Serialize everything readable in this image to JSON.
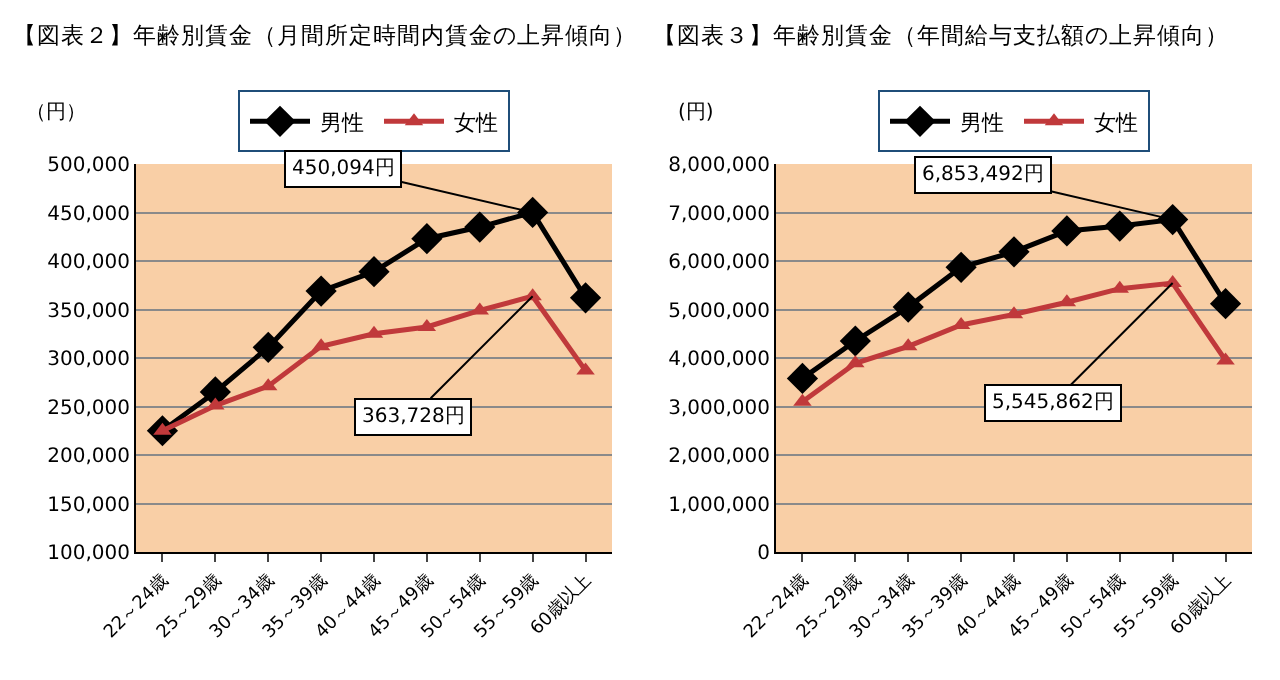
{
  "chart_data": [
    {
      "type": "line",
      "title": "【図表２】年齢別賃金（月間所定時間内賃金の上昇傾向）",
      "ylabel": "（円）",
      "categories": [
        "22～24歳",
        "25～29歳",
        "30～34歳",
        "35～39歳",
        "40～44歳",
        "45～49歳",
        "50～54歳",
        "55～59歳",
        "60歳以上"
      ],
      "series": [
        {
          "name": "男性",
          "color": "#000000",
          "marker": "diamond",
          "values": [
            225000,
            265000,
            311000,
            369000,
            389000,
            423000,
            435000,
            450094,
            362000
          ]
        },
        {
          "name": "女性",
          "color": "#c0393b",
          "marker": "triangle",
          "values": [
            225000,
            251000,
            271000,
            312000,
            325000,
            332000,
            349000,
            363728,
            287000
          ]
        }
      ],
      "ylim": [
        100000,
        500000
      ],
      "yticks": [
        {
          "value": 100000,
          "label": "100,000"
        },
        {
          "value": 150000,
          "label": "150,000"
        },
        {
          "value": 200000,
          "label": "200,000"
        },
        {
          "value": 250000,
          "label": "250,000"
        },
        {
          "value": 300000,
          "label": "300,000"
        },
        {
          "value": 350000,
          "label": "350,000"
        },
        {
          "value": 400000,
          "label": "400,000"
        },
        {
          "value": 450000,
          "label": "450,000"
        },
        {
          "value": 500000,
          "label": "500,000"
        }
      ],
      "grid": "y",
      "legend": "top",
      "annotations": [
        {
          "text": "450,094円",
          "x": "55～59歳",
          "y": 450094
        },
        {
          "text": "363,728円",
          "x": "55～59歳",
          "y": 363728
        }
      ]
    },
    {
      "type": "line",
      "title": "【図表３】年齢別賃金（年間給与支払額の上昇傾向）",
      "ylabel": "(円)",
      "categories": [
        "22～24歳",
        "25～29歳",
        "30～34歳",
        "35～39歳",
        "40～44歳",
        "45～49歳",
        "50～54歳",
        "55～59歳",
        "60歳以上"
      ],
      "series": [
        {
          "name": "男性",
          "color": "#000000",
          "marker": "diamond",
          "values": [
            3580000,
            4350000,
            5050000,
            5870000,
            6190000,
            6620000,
            6720000,
            6853492,
            5120000
          ]
        },
        {
          "name": "女性",
          "color": "#c0393b",
          "marker": "triangle",
          "values": [
            3100000,
            3890000,
            4240000,
            4680000,
            4900000,
            5150000,
            5430000,
            5545862,
            3950000
          ]
        }
      ],
      "ylim": [
        0,
        8000000
      ],
      "yticks": [
        0,
        {
          "value": 1000000,
          "label": "1,000,000"
        },
        {
          "value": 2000000,
          "label": "2,000,000"
        },
        {
          "value": 3000000,
          "label": "3,000,000"
        },
        {
          "value": 4000000,
          "label": "4,000,000"
        },
        {
          "value": 5000000,
          "label": "5,000,000"
        },
        {
          "value": 6000000,
          "label": "6,000,000"
        },
        {
          "value": 7000000,
          "label": "7,000,000"
        },
        {
          "value": 8000000,
          "label": "8,000,000"
        }
      ],
      "grid": "y",
      "legend": "top",
      "annotations": [
        {
          "text": "6,853,492円",
          "x": "55～59歳",
          "y": 6853492
        },
        {
          "text": "5,545,862円",
          "x": "55～59歳",
          "y": 5545862
        }
      ]
    }
  ]
}
